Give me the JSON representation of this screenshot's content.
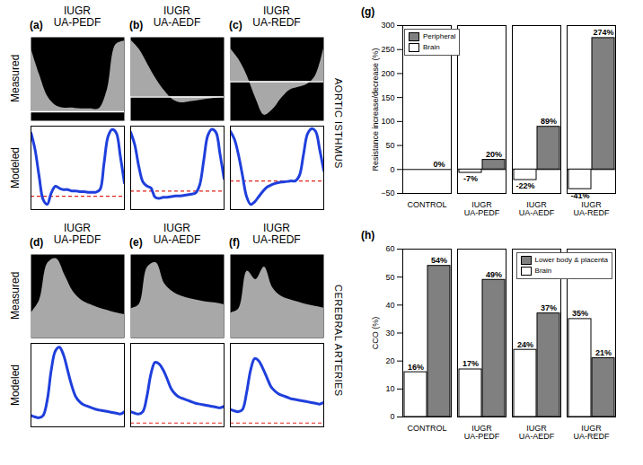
{
  "chart_data": [
    {
      "type": "waveform_group",
      "label": "AORTIC ISTHMUS",
      "row_labels": [
        "Measured",
        "Modeled"
      ],
      "color": "#1f3fdc",
      "panels": [
        {
          "letter": "(a)",
          "title": "IUGR UA-PEDF",
          "measured": {
            "values": [
              0.85,
              0.5,
              0.2,
              0.08,
              0.05,
              0.05,
              0.04,
              0.04,
              0.04,
              0.3,
              0.9,
              0.95
            ],
            "baseline": 0,
            "ylim": [
              -0.12,
              1
            ]
          },
          "modeled": {
            "values": [
              0.95,
              0.7,
              0.3,
              -0.05,
              -0.12,
              0.05,
              0.15,
              0.12,
              0.1,
              0.1,
              0.08,
              0.08,
              0.07,
              0.07,
              0.06,
              0.06,
              0.06,
              0.1,
              0.5,
              0.9,
              1.0,
              0.95,
              0.6,
              0.2
            ],
            "baseline": 0,
            "ylim": [
              -0.2,
              1.05
            ]
          }
        },
        {
          "letter": "(b)",
          "title": "IUGR UA-AEDF",
          "measured": {
            "values": [
              0.95,
              0.8,
              0.55,
              0.3,
              0.1,
              -0.05,
              -0.1,
              -0.08,
              -0.06,
              -0.04,
              -0.02,
              0
            ],
            "baseline": 0,
            "ylim": [
              -0.4,
              1
            ]
          },
          "modeled": {
            "values": [
              0.95,
              0.75,
              0.4,
              0.15,
              0.08,
              0.05,
              -0.1,
              -0.12,
              -0.1,
              -0.1,
              -0.09,
              -0.08,
              -0.08,
              -0.07,
              -0.06,
              -0.05,
              -0.03,
              0.1,
              0.5,
              0.9,
              1.0,
              0.95,
              0.6,
              0.2
            ],
            "baseline": 0,
            "ylim": [
              -0.3,
              1.05
            ]
          }
        },
        {
          "letter": "(c)",
          "title": "IUGR UA-REDF",
          "measured": {
            "values": [
              0.6,
              0.4,
              0.1,
              -0.3,
              -0.6,
              -0.5,
              -0.3,
              -0.15,
              -0.1,
              -0.05,
              0.1,
              0.6
            ],
            "baseline": 0,
            "ylim": [
              -0.7,
              0.8
            ]
          },
          "modeled": {
            "values": [
              0.95,
              0.8,
              0.5,
              0.1,
              -0.3,
              -0.45,
              -0.4,
              -0.3,
              -0.2,
              -0.12,
              -0.08,
              -0.05,
              -0.03,
              -0.02,
              -0.01,
              0,
              0,
              0.1,
              0.5,
              0.9,
              1.0,
              0.95,
              0.6,
              0.2
            ],
            "baseline": 0,
            "ylim": [
              -0.55,
              1.05
            ]
          }
        }
      ]
    },
    {
      "type": "waveform_group",
      "label": "CEREBRAL ARTERIES",
      "row_labels": [
        "Measured",
        "Modeled"
      ],
      "color": "#1f3fdc",
      "panels": [
        {
          "letter": "(d)",
          "title": "IUGR UA-PEDF",
          "measured": {
            "values": [
              0.3,
              0.45,
              0.9,
              0.95,
              0.75,
              0.55,
              0.45,
              0.4,
              0.36,
              0.33,
              0.3,
              0.28
            ],
            "baseline": null,
            "ylim": [
              0,
              1
            ]
          },
          "modeled": {
            "values": [
              0.1,
              0.08,
              0.07,
              0.1,
              0.3,
              0.7,
              0.95,
              1.0,
              0.9,
              0.7,
              0.5,
              0.35,
              0.28,
              0.24,
              0.22,
              0.2,
              0.18,
              0.17,
              0.16,
              0.15,
              0.14,
              0.13,
              0.12,
              0.15
            ],
            "baseline": null,
            "ylim": [
              -0.05,
              1.05
            ]
          }
        },
        {
          "letter": "(e)",
          "title": "IUGR UA-AEDF",
          "measured": {
            "values": [
              0.35,
              0.4,
              0.85,
              0.9,
              0.65,
              0.55,
              0.5,
              0.47,
              0.45,
              0.43,
              0.42,
              0.4
            ],
            "baseline": null,
            "ylim": [
              0,
              1
            ]
          },
          "modeled": {
            "values": [
              0.15,
              0.13,
              0.12,
              0.15,
              0.35,
              0.65,
              0.8,
              0.78,
              0.7,
              0.58,
              0.45,
              0.38,
              0.34,
              0.32,
              0.3,
              0.28,
              0.26,
              0.25,
              0.24,
              0.23,
              0.22,
              0.21,
              0.2,
              0.22
            ],
            "baseline": 0,
            "ylim": [
              -0.05,
              1.05
            ]
          }
        },
        {
          "letter": "(f)",
          "title": "IUGR UA-REDF",
          "measured": {
            "values": [
              0.3,
              0.35,
              0.8,
              0.7,
              0.85,
              0.6,
              0.5,
              0.46,
              0.43,
              0.4,
              0.38,
              0.36
            ],
            "baseline": null,
            "ylim": [
              0,
              1
            ]
          },
          "modeled": {
            "values": [
              0.18,
              0.16,
              0.15,
              0.18,
              0.4,
              0.7,
              0.85,
              0.82,
              0.72,
              0.6,
              0.48,
              0.42,
              0.38,
              0.36,
              0.34,
              0.32,
              0.31,
              0.3,
              0.29,
              0.28,
              0.27,
              0.26,
              0.25,
              0.27
            ],
            "baseline": 0,
            "ylim": [
              -0.05,
              1.05
            ]
          }
        }
      ]
    },
    {
      "type": "bar",
      "letter": "(g)",
      "y_label": "Resistance increase/decrease (%)",
      "categories": [
        "CONTROL",
        "IUGR UA-PEDF",
        "IUGR UA-AEDF",
        "IUGR UA-REDF"
      ],
      "series": [
        {
          "name": "Peripheral",
          "color": "#808080",
          "values": [
            0,
            20,
            89,
            274
          ],
          "value_labels": [
            "0%",
            "20%",
            "89%",
            "274%"
          ]
        },
        {
          "name": "Brain",
          "color": "#ffffff",
          "values": [
            0,
            -7,
            -22,
            -41
          ],
          "value_labels": [
            null,
            "-7%",
            "-22%",
            "-41%"
          ]
        }
      ],
      "ylim": [
        -50,
        300
      ],
      "yticks": [
        -50,
        0,
        50,
        100,
        150,
        200,
        250,
        300
      ],
      "legend": "upper left",
      "data_labels": true
    },
    {
      "type": "bar",
      "letter": "(h)",
      "y_label": "CCO (%)",
      "categories": [
        "CONTROL",
        "IUGR UA-PEDF",
        "IUGR UA-AEDF",
        "IUGR UA-REDF"
      ],
      "series": [
        {
          "name": "Lower body & placenta",
          "color": "#808080",
          "values": [
            54,
            49,
            37,
            21
          ],
          "value_labels": [
            "54%",
            "49%",
            "37%",
            "21%"
          ]
        },
        {
          "name": "Brain",
          "color": "#ffffff",
          "values": [
            16,
            17,
            24,
            35
          ],
          "value_labels": [
            "16%",
            "17%",
            "24%",
            "35%"
          ]
        }
      ],
      "ylim": [
        0,
        60
      ],
      "yticks": [
        0,
        10,
        20,
        30,
        40,
        50,
        60
      ],
      "legend": "upper right",
      "data_labels": true
    }
  ]
}
